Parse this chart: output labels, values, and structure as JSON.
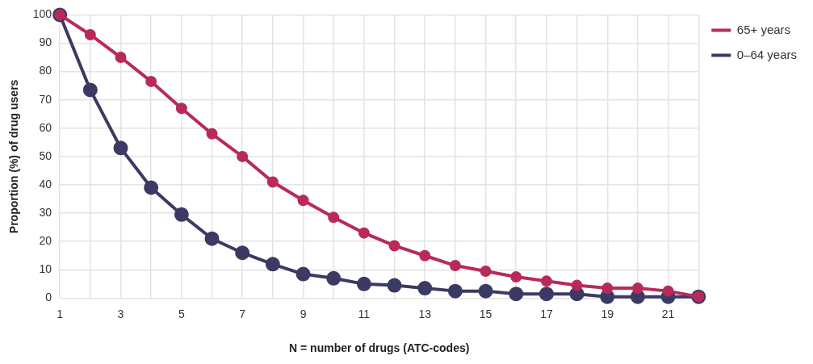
{
  "chart_data": {
    "type": "line",
    "xlabel": "N = number of drugs (ATC-codes)",
    "ylabel": "Proportion (%) of drug users",
    "x": [
      1,
      2,
      3,
      4,
      5,
      6,
      7,
      8,
      9,
      10,
      11,
      12,
      13,
      14,
      15,
      16,
      17,
      18,
      19,
      20,
      21,
      22
    ],
    "series": [
      {
        "name": "65+ years",
        "color": "#b82a5a",
        "values": [
          100,
          93,
          85,
          76.5,
          67,
          58,
          50,
          41,
          34.5,
          28.5,
          23,
          18.5,
          15,
          11.5,
          9.5,
          7.5,
          6,
          4.5,
          3.5,
          3.5,
          2.5,
          0.5
        ]
      },
      {
        "name": "0–64 years",
        "color": "#3b3a63",
        "values": [
          100,
          73.5,
          53,
          39,
          29.5,
          21,
          16,
          12,
          8.5,
          7,
          5,
          4.5,
          3.5,
          2.5,
          2.5,
          1.5,
          1.5,
          1.5,
          0.5,
          0.5,
          0.5,
          0.5
        ]
      }
    ],
    "xlim": [
      1,
      22
    ],
    "xticks": [
      1,
      {
        "value": 2,
        "label": null
      },
      3,
      {
        "value": 4,
        "label": null
      },
      5,
      {
        "value": 6,
        "label": null
      },
      7,
      {
        "value": 8,
        "label": null
      },
      9,
      {
        "value": 10,
        "label": null
      },
      11,
      {
        "value": 12,
        "label": null
      },
      13,
      {
        "value": 14,
        "label": null
      },
      15,
      {
        "value": 16,
        "label": null
      },
      17,
      {
        "value": 18,
        "label": null
      },
      19,
      {
        "value": 20,
        "label": null
      },
      21,
      {
        "value": 22,
        "label": null
      }
    ],
    "ylim": [
      0,
      100
    ],
    "yticks": [
      0,
      10,
      20,
      30,
      40,
      50,
      60,
      70,
      80,
      90,
      100
    ],
    "grid": true,
    "legend": "top right",
    "marker": "circle",
    "line_style": "solid"
  }
}
